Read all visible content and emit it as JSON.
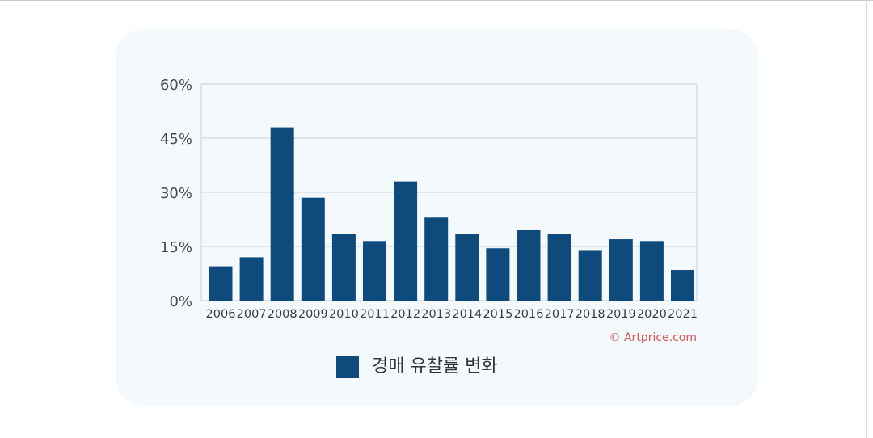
{
  "chart_data": {
    "type": "bar",
    "categories": [
      "2006",
      "2007",
      "2008",
      "2009",
      "2010",
      "2011",
      "2012",
      "2013",
      "2014",
      "2015",
      "2016",
      "2017",
      "2018",
      "2019",
      "2020",
      "2021"
    ],
    "series": [
      {
        "name": "경매 유찰률 변화",
        "values": [
          9.5,
          12,
          48,
          28.5,
          18.5,
          16.5,
          33,
          23,
          18.5,
          14.5,
          19.5,
          18.5,
          14,
          17,
          16.5,
          8.5
        ],
        "color": "#0f4a7d"
      }
    ],
    "ylim": [
      0,
      60
    ],
    "yticks": [
      "0%",
      "15%",
      "30%",
      "45%",
      "60%"
    ],
    "ytick_values": [
      0,
      15,
      30,
      45,
      60
    ],
    "grid": true,
    "legend_position": "bottom-center",
    "credit": "© Artprice.com",
    "colors": {
      "bar": "#0f4a7d",
      "grid": "#c9d3dc",
      "credit": "#d9534f",
      "background": "#f3f9fc"
    }
  }
}
